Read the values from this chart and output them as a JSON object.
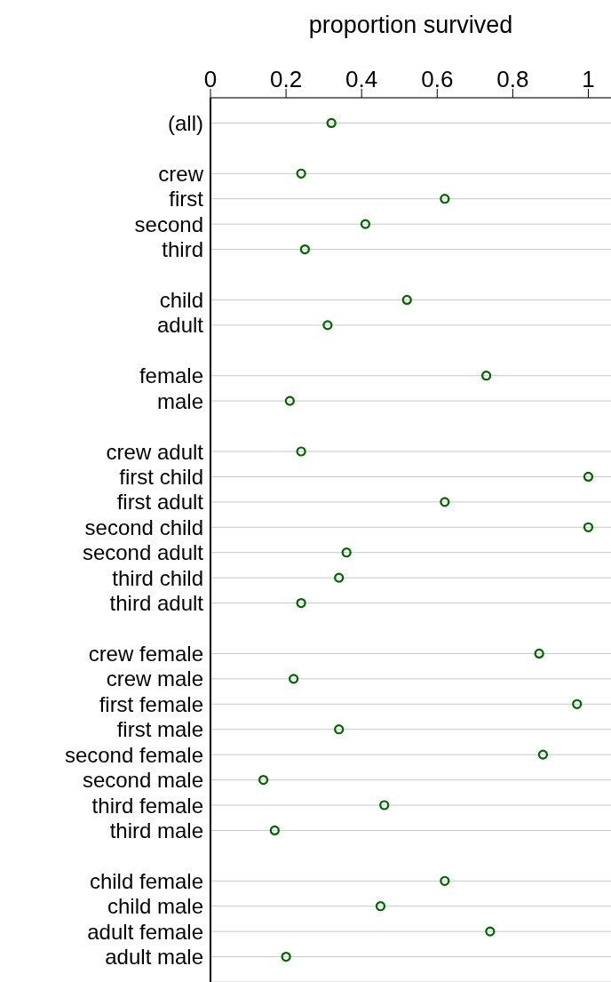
{
  "chart_data": {
    "type": "scatter",
    "xlabel": "proportion survived",
    "categories": [
      "(all)",
      null,
      "crew",
      "first",
      "second",
      "third",
      null,
      "child",
      "adult",
      null,
      "female",
      "male",
      null,
      "crew  adult",
      "first  child",
      "first  adult",
      "second  child",
      "second  adult",
      "third  child",
      "third  adult",
      null,
      "crew  female",
      "crew  male",
      "first  female",
      "first  male",
      "second  female",
      "second  male",
      "third  female",
      "third  male",
      null,
      "child  female",
      "child  male",
      "adult  female",
      "adult  male"
    ],
    "series": [
      {
        "color": "#006400",
        "values": [
          0.32,
          null,
          0.24,
          0.62,
          0.41,
          0.25,
          null,
          0.52,
          0.31,
          null,
          0.73,
          0.21,
          null,
          0.24,
          1.0,
          0.62,
          1.0,
          0.36,
          0.34,
          0.24,
          null,
          0.87,
          0.22,
          0.97,
          0.34,
          0.88,
          0.14,
          0.46,
          0.17,
          null,
          0.62,
          0.45,
          0.74,
          0.2
        ]
      }
    ],
    "orientation": "horizontal",
    "xlim": [
      0,
      1.06
    ],
    "xticks": [
      0,
      0.2,
      0.4,
      0.6,
      0.8,
      1
    ],
    "grid": "y",
    "marker": "circle"
  }
}
